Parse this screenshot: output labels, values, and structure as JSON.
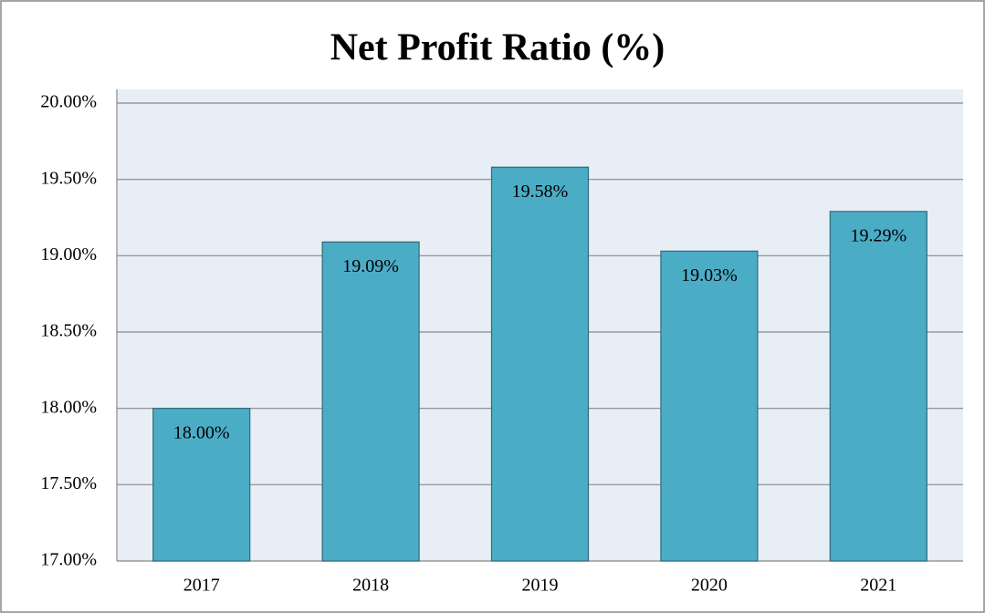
{
  "chart_data": {
    "type": "bar",
    "title": "Net Profit Ratio (%)",
    "categories": [
      "2017",
      "2018",
      "2019",
      "2020",
      "2021"
    ],
    "values": [
      18.0,
      19.09,
      19.58,
      19.03,
      19.29
    ],
    "value_labels": [
      "18.00%",
      "19.09%",
      "19.58%",
      "19.03%",
      "19.29%"
    ],
    "color": "#4bacc6",
    "ylim": [
      17,
      20
    ],
    "yticks": [
      {
        "value": 17,
        "label": "17.00%"
      },
      {
        "value": 17.5,
        "label": "17.50%"
      },
      {
        "value": 18,
        "label": "18.00%"
      },
      {
        "value": 18.5,
        "label": "18.50%"
      },
      {
        "value": 19,
        "label": "19.00%"
      },
      {
        "value": 19.5,
        "label": "19.50%"
      },
      {
        "value": 20,
        "label": "20.00%"
      }
    ],
    "grid": true
  }
}
